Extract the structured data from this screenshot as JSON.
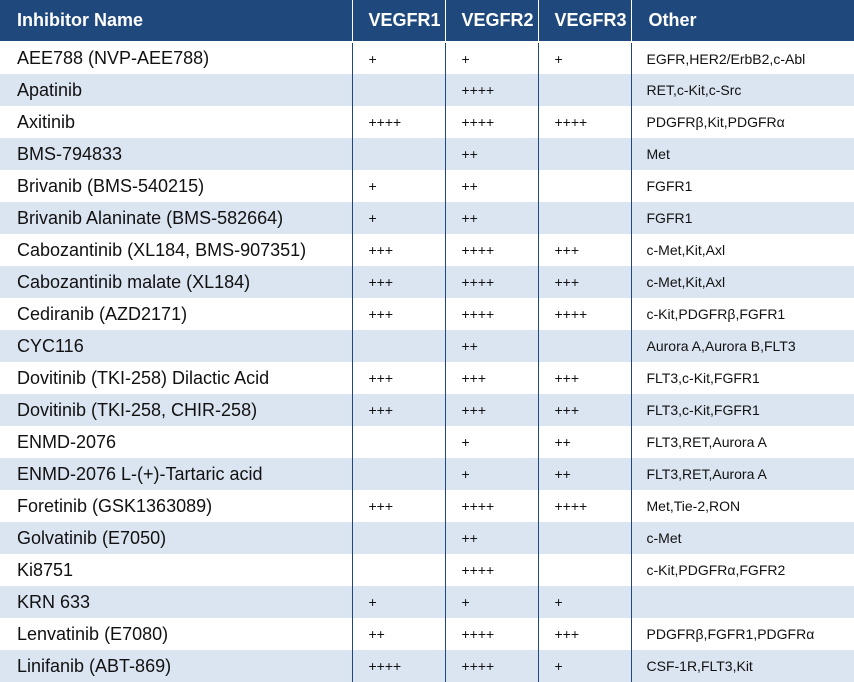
{
  "table": {
    "headers": {
      "name": "Inhibitor Name",
      "vegfr1": "VEGFR1",
      "vegfr2": "VEGFR2",
      "vegfr3": "VEGFR3",
      "other": "Other"
    },
    "rows": [
      {
        "name": "AEE788 (NVP-AEE788)",
        "vegfr1": "+",
        "vegfr2": "+",
        "vegfr3": "+",
        "other": "EGFR,HER2/ErbB2,c-Abl"
      },
      {
        "name": "Apatinib",
        "vegfr1": "",
        "vegfr2": "++++",
        "vegfr3": "",
        "other": "RET,c-Kit,c-Src"
      },
      {
        "name": "Axitinib",
        "vegfr1": "++++",
        "vegfr2": "++++",
        "vegfr3": "++++",
        "other": "PDGFRβ,Kit,PDGFRα"
      },
      {
        "name": "BMS-794833",
        "vegfr1": "",
        "vegfr2": "++",
        "vegfr3": "",
        "other": "Met"
      },
      {
        "name": "Brivanib (BMS-540215)",
        "vegfr1": "+",
        "vegfr2": "++",
        "vegfr3": "",
        "other": "FGFR1"
      },
      {
        "name": "Brivanib Alaninate (BMS-582664)",
        "vegfr1": "+",
        "vegfr2": "++",
        "vegfr3": "",
        "other": "FGFR1"
      },
      {
        "name": "Cabozantinib (XL184, BMS-907351)",
        "vegfr1": "+++",
        "vegfr2": "++++",
        "vegfr3": "+++",
        "other": "c-Met,Kit,Axl"
      },
      {
        "name": "Cabozantinib malate (XL184)",
        "vegfr1": "+++",
        "vegfr2": "++++",
        "vegfr3": "+++",
        "other": "c-Met,Kit,Axl"
      },
      {
        "name": "Cediranib (AZD2171)",
        "vegfr1": "+++",
        "vegfr2": "++++",
        "vegfr3": "++++",
        "other": "c-Kit,PDGFRβ,FGFR1"
      },
      {
        "name": "CYC116",
        "vegfr1": "",
        "vegfr2": "++",
        "vegfr3": "",
        "other": "Aurora A,Aurora B,FLT3"
      },
      {
        "name": "Dovitinib (TKI-258) Dilactic Acid",
        "vegfr1": "+++",
        "vegfr2": "+++",
        "vegfr3": "+++",
        "other": "FLT3,c-Kit,FGFR1"
      },
      {
        "name": "Dovitinib (TKI-258, CHIR-258)",
        "vegfr1": "+++",
        "vegfr2": "+++",
        "vegfr3": "+++",
        "other": "FLT3,c-Kit,FGFR1"
      },
      {
        "name": "ENMD-2076",
        "vegfr1": "",
        "vegfr2": "+",
        "vegfr3": "++",
        "other": "FLT3,RET,Aurora A"
      },
      {
        "name": "ENMD-2076 L-(+)-Tartaric acid",
        "vegfr1": "",
        "vegfr2": "+",
        "vegfr3": "++",
        "other": "FLT3,RET,Aurora A"
      },
      {
        "name": "Foretinib (GSK1363089)",
        "vegfr1": "+++",
        "vegfr2": "++++",
        "vegfr3": "++++",
        "other": "Met,Tie-2,RON"
      },
      {
        "name": "Golvatinib (E7050)",
        "vegfr1": "",
        "vegfr2": "++",
        "vegfr3": "",
        "other": "c-Met"
      },
      {
        "name": "Ki8751",
        "vegfr1": "",
        "vegfr2": "++++",
        "vegfr3": "",
        "other": "c-Kit,PDGFRα,FGFR2"
      },
      {
        "name": "KRN 633",
        "vegfr1": "+",
        "vegfr2": "+",
        "vegfr3": "+",
        "other": ""
      },
      {
        "name": "Lenvatinib (E7080)",
        "vegfr1": "++",
        "vegfr2": "++++",
        "vegfr3": "+++",
        "other": "PDGFRβ,FGFR1,PDGFRα"
      },
      {
        "name": "Linifanib (ABT-869)",
        "vegfr1": "++++",
        "vegfr2": "++++",
        "vegfr3": "+",
        "other": "CSF-1R,FLT3,Kit"
      }
    ]
  }
}
